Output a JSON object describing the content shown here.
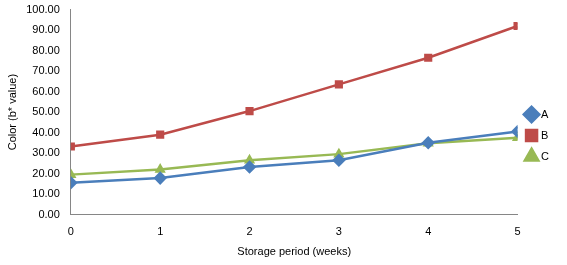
{
  "chart_data": {
    "type": "line",
    "x_label": "Storage period (weeks)",
    "y_label": "Color (b* value)",
    "categories": [
      "0",
      "1",
      "2",
      "3",
      "4",
      "5"
    ],
    "series": [
      {
        "name": "A",
        "color": "#4a7ebb",
        "marker": "diamond",
        "values": [
          15.5,
          17.8,
          23.2,
          26.5,
          35.0,
          40.5
        ]
      },
      {
        "name": "B",
        "color": "#be4b48",
        "marker": "square",
        "values": [
          33.2,
          39.0,
          50.5,
          63.5,
          76.5,
          92.0
        ]
      },
      {
        "name": "C",
        "color": "#98b954",
        "marker": "triangle",
        "values": [
          19.5,
          22.0,
          26.5,
          29.5,
          34.8,
          37.5
        ]
      }
    ],
    "ylim": [
      0,
      100
    ],
    "yticks": [
      {
        "value": 0,
        "label": "0.00"
      },
      {
        "value": 10,
        "label": "10.00"
      },
      {
        "value": 20,
        "label": "20.00"
      },
      {
        "value": 30,
        "label": "30.00"
      },
      {
        "value": 40,
        "label": "40.00"
      },
      {
        "value": 50,
        "label": "50.00"
      },
      {
        "value": 60,
        "label": "60.00"
      },
      {
        "value": 70,
        "label": "70.00"
      },
      {
        "value": 80,
        "label": "80.00"
      },
      {
        "value": 90,
        "label": "90.00"
      },
      {
        "value": 100,
        "label": "100.00"
      }
    ],
    "grid": false,
    "legend": "right"
  }
}
